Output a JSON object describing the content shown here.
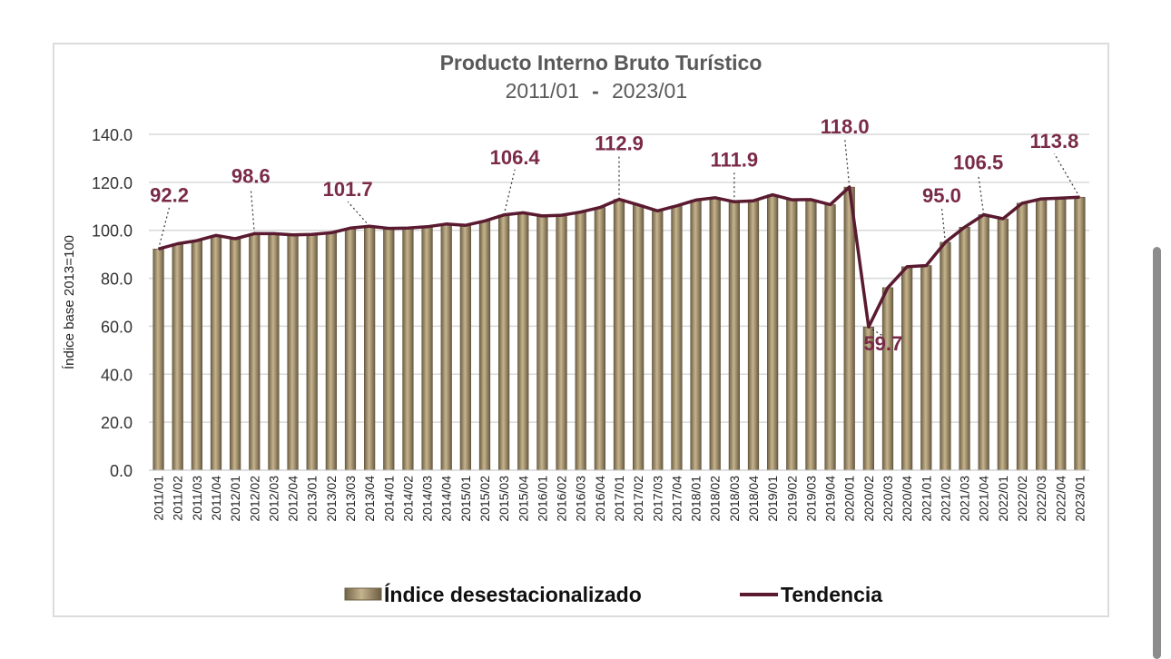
{
  "chart_data": {
    "type": "bar",
    "title": "Producto Interno Bruto Turístico",
    "subtitle_start": "2011/01",
    "subtitle_sep": "-",
    "subtitle_end": "2023/01",
    "ylabel": "Índice base 2013=100",
    "ylim": [
      0,
      140
    ],
    "yticks": [
      "0.0",
      "20.0",
      "40.0",
      "60.0",
      "80.0",
      "100.0",
      "120.0",
      "140.0"
    ],
    "grid": true,
    "legend_position": "bottom",
    "colors": {
      "bar": "#8a7a5c",
      "bar_light": "#c6b48e",
      "line": "#5a1a30",
      "label": "#7a2a48",
      "grid": "#d9d9d9"
    },
    "categories": [
      "2011/01",
      "2011/02",
      "2011/03",
      "2011/04",
      "2012/01",
      "2012/02",
      "2012/03",
      "2012/04",
      "2013/01",
      "2013/02",
      "2013/03",
      "2013/04",
      "2014/01",
      "2014/02",
      "2014/03",
      "2014/04",
      "2015/01",
      "2015/02",
      "2015/03",
      "2015/04",
      "2016/01",
      "2016/02",
      "2016/03",
      "2016/04",
      "2017/01",
      "2017/02",
      "2017/03",
      "2017/04",
      "2018/01",
      "2018/02",
      "2018/03",
      "2018/04",
      "2019/01",
      "2019/02",
      "2019/03",
      "2019/04",
      "2020/01",
      "2020/02",
      "2020/03",
      "2020/04",
      "2021/01",
      "2021/02",
      "2021/03",
      "2021/04",
      "2022/01",
      "2022/02",
      "2022/03",
      "2022/04",
      "2023/01"
    ],
    "series": [
      {
        "name": "Índice desestacionalizado",
        "type": "bar",
        "values": [
          92.2,
          94.4,
          95.7,
          97.9,
          96.5,
          98.6,
          98.6,
          98.1,
          98.3,
          99.0,
          100.9,
          101.7,
          100.8,
          100.9,
          101.5,
          102.6,
          102.1,
          103.9,
          106.4,
          107.3,
          106.0,
          106.3,
          107.6,
          109.5,
          112.9,
          110.6,
          108.1,
          110.2,
          112.6,
          113.6,
          111.9,
          112.3,
          114.8,
          112.7,
          112.8,
          110.7,
          118.0,
          59.7,
          76.1,
          84.8,
          85.3,
          95.0,
          101.3,
          106.5,
          104.8,
          111.3,
          113.1,
          113.4,
          113.8
        ]
      },
      {
        "name": "Tendencia",
        "type": "line",
        "values": [
          92.2,
          94.4,
          95.7,
          97.9,
          96.5,
          98.6,
          98.6,
          98.1,
          98.3,
          99.0,
          100.9,
          101.7,
          100.8,
          100.9,
          101.5,
          102.6,
          102.1,
          103.9,
          106.4,
          107.3,
          106.0,
          106.3,
          107.6,
          109.5,
          112.9,
          110.6,
          108.1,
          110.2,
          112.6,
          113.6,
          111.9,
          112.3,
          114.8,
          112.7,
          112.8,
          110.7,
          118.0,
          59.7,
          76.1,
          84.8,
          85.3,
          95.0,
          101.3,
          106.5,
          104.8,
          111.3,
          113.1,
          113.4,
          113.8
        ]
      }
    ],
    "callouts": [
      {
        "index": 0,
        "text": "92.2"
      },
      {
        "index": 5,
        "text": "98.6"
      },
      {
        "index": 11,
        "text": "101.7"
      },
      {
        "index": 18,
        "text": "106.4"
      },
      {
        "index": 24,
        "text": "112.9"
      },
      {
        "index": 30,
        "text": "111.9"
      },
      {
        "index": 36,
        "text": "118.0"
      },
      {
        "index": 37,
        "text": "59.7"
      },
      {
        "index": 41,
        "text": "95.0"
      },
      {
        "index": 43,
        "text": "106.5"
      },
      {
        "index": 48,
        "text": "113.8"
      }
    ]
  }
}
